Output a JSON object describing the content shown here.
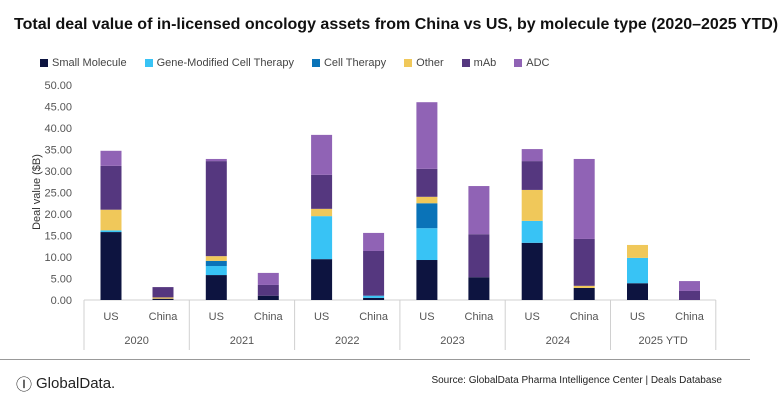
{
  "chart_data": {
    "type": "bar",
    "stacked": true,
    "title": "Total deal value of in-licensed oncology assets from China vs US, by molecule type (2020–2025 YTD)",
    "ylabel": "Deal value ($B)",
    "xlabel": "",
    "ylim": [
      0,
      50
    ],
    "yticks": [
      "0.00",
      "5.00",
      "10.00",
      "15.00",
      "20.00",
      "25.00",
      "30.00",
      "35.00",
      "40.00",
      "45.00",
      "50.00"
    ],
    "grid": false,
    "legend": "top",
    "groups": [
      "2020",
      "2021",
      "2022",
      "2023",
      "2024",
      "2025 YTD"
    ],
    "subcategories": [
      "US",
      "China"
    ],
    "series": [
      {
        "name": "Small Molecule",
        "color": "#0d1440",
        "values": [
          15.8,
          0.3,
          5.8,
          1.0,
          9.5,
          0.5,
          9.3,
          5.3,
          13.3,
          2.8,
          3.9,
          0
        ]
      },
      {
        "name": "Gene-Modified Cell Therapy",
        "color": "#38c3f5",
        "values": [
          0.4,
          0,
          2.1,
          0,
          10.0,
          0.5,
          7.4,
          0,
          5.1,
          0,
          5.9,
          0
        ]
      },
      {
        "name": "Cell Therapy",
        "color": "#0a73b8",
        "values": [
          0,
          0,
          1.2,
          0,
          0,
          0,
          5.8,
          0,
          0,
          0,
          0,
          0
        ]
      },
      {
        "name": "Other",
        "color": "#f0c85a",
        "values": [
          4.8,
          0.3,
          1.1,
          0,
          1.7,
          0,
          1.5,
          0,
          7.2,
          0.5,
          3.0,
          0
        ]
      },
      {
        "name": "mAb",
        "color": "#55377f",
        "values": [
          10.2,
          2.4,
          22.1,
          2.5,
          7.9,
          10.4,
          6.5,
          10.0,
          6.7,
          10.9,
          0,
          2.1
        ]
      },
      {
        "name": "ADC",
        "color": "#9063b5",
        "values": [
          3.5,
          0,
          0.5,
          2.8,
          9.3,
          4.2,
          15.5,
          11.2,
          2.8,
          18.6,
          0,
          2.3
        ]
      }
    ]
  },
  "footer": {
    "logo": "GlobalData.",
    "source": "Source: GlobalData Pharma Intelligence Center | Deals Database"
  }
}
